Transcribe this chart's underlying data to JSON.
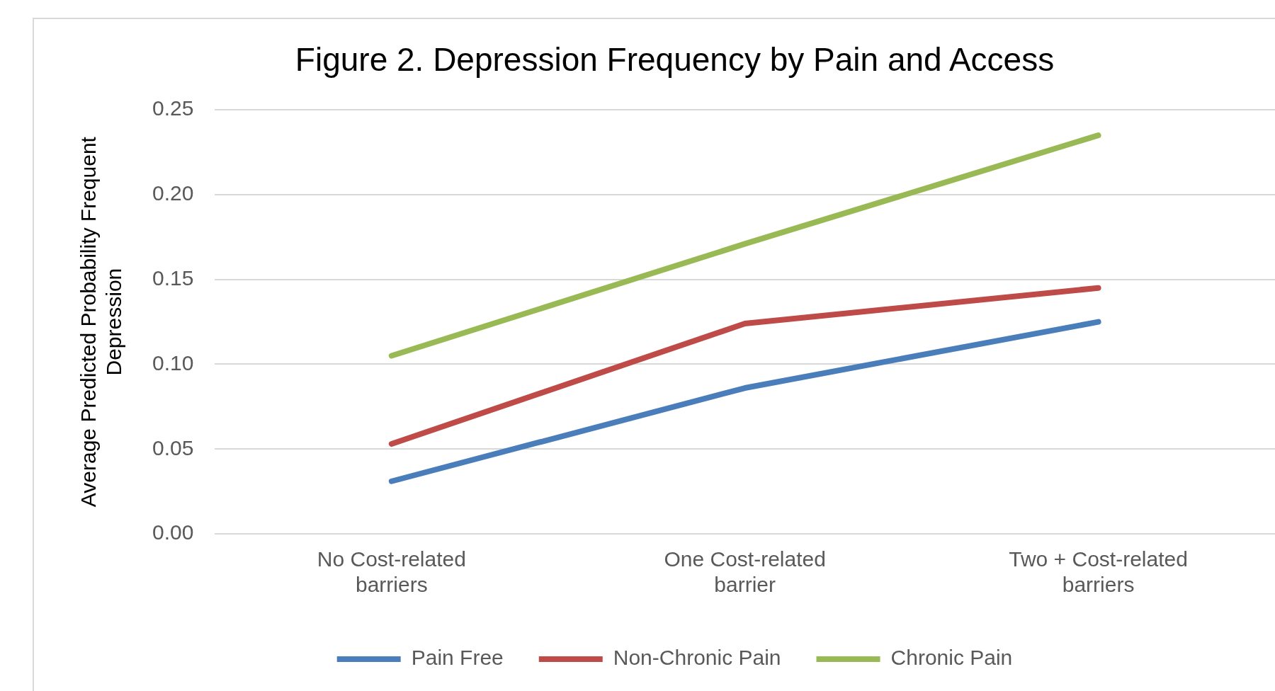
{
  "chart_data": {
    "type": "line",
    "title": "Figure 2. Depression Frequency by Pain and Access",
    "ylabel": "Average Predicted Probability Frequent Depression",
    "categories": [
      "No Cost-related barriers",
      "One Cost-related barrier",
      "Two + Cost-related barriers"
    ],
    "series": [
      {
        "name": "Pain Free",
        "color": "#4a7ebb",
        "values": [
          0.031,
          0.086,
          0.125
        ]
      },
      {
        "name": "Non-Chronic Pain",
        "color": "#be4b48",
        "values": [
          0.053,
          0.124,
          0.145
        ]
      },
      {
        "name": "Chronic Pain",
        "color": "#98b954",
        "values": [
          0.105,
          0.171,
          0.235
        ]
      }
    ],
    "ylim": [
      0,
      0.25
    ],
    "yticks": [
      {
        "value": 0,
        "label": "0.00"
      },
      {
        "value": 0.05,
        "label": "0.05"
      },
      {
        "value": 0.1,
        "label": "0.10"
      },
      {
        "value": 0.15,
        "label": "0.15"
      },
      {
        "value": 0.2,
        "label": "0.20"
      },
      {
        "value": 0.25,
        "label": "0.25"
      }
    ],
    "grid": "y",
    "legend": "bottom",
    "marker": "none",
    "line_style": "solid"
  }
}
